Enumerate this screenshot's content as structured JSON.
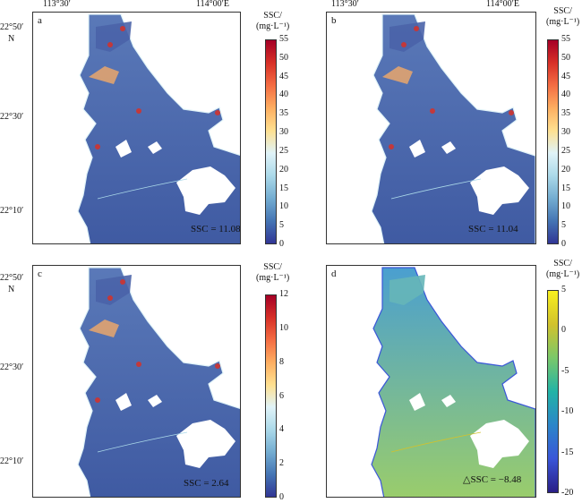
{
  "axes": {
    "lon_labels": [
      "113°30′",
      "114°00′E"
    ],
    "lat_labels": [
      "22°50′",
      "22°30′",
      "22°10′"
    ],
    "north_label": "N"
  },
  "colorbar_title_line1": "SSC/",
  "colorbar_title_line2": "mg·L⁻¹",
  "panels": [
    {
      "label": "a",
      "stat": "SSC = 11.08",
      "ticks": [
        "55",
        "50",
        "45",
        "40",
        "35",
        "30",
        "25",
        "20",
        "15",
        "10",
        "5",
        "0"
      ],
      "cmap": "warm"
    },
    {
      "label": "b",
      "stat": "SSC = 11.04",
      "ticks": [
        "55",
        "50",
        "45",
        "40",
        "35",
        "30",
        "25",
        "20",
        "15",
        "10",
        "5",
        "0"
      ],
      "cmap": "warm"
    },
    {
      "label": "c",
      "stat": "SSC = 2.64",
      "ticks": [
        "12",
        "10",
        "8",
        "6",
        "4",
        "2",
        "0"
      ],
      "cmap": "warm"
    },
    {
      "label": "d",
      "stat": "△SSC = −8.48",
      "ticks": [
        "5",
        "0",
        "-5",
        "-10",
        "-15",
        "-20"
      ],
      "cmap": "parula"
    }
  ],
  "colors": {
    "water_base": "#4a63a9",
    "warm_cmap": [
      "#313695",
      "#4575b4",
      "#74add1",
      "#abd9e9",
      "#e0f3f8",
      "#fee090",
      "#fdae61",
      "#f46d43",
      "#d73027",
      "#a50026"
    ],
    "diff_cmap": [
      "#2a1f86",
      "#3a56d8",
      "#2c86c9",
      "#22b3a6",
      "#7ac86a",
      "#d1c22d",
      "#f9f01f"
    ]
  }
}
